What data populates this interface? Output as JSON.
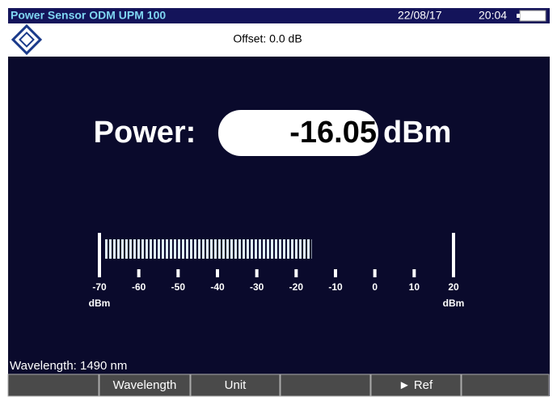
{
  "status_bar": {
    "title": "Power Sensor ODM UPM 100",
    "date": "22/08/17",
    "time": "20:04"
  },
  "header": {
    "offset": "Offset: 0.0 dB"
  },
  "reading": {
    "label": "Power:",
    "value": -16.05,
    "unit": "dBm"
  },
  "meter": {
    "min": -70,
    "max": 20,
    "ticks": [
      -70,
      -60,
      -50,
      -40,
      -30,
      -20,
      -10,
      0,
      10,
      20
    ],
    "unit": "dBm"
  },
  "footer": {
    "wavelength": "Wavelength: 1490 nm"
  },
  "softkeys": [
    "Wavelength",
    "Unit",
    "► Ref"
  ]
}
